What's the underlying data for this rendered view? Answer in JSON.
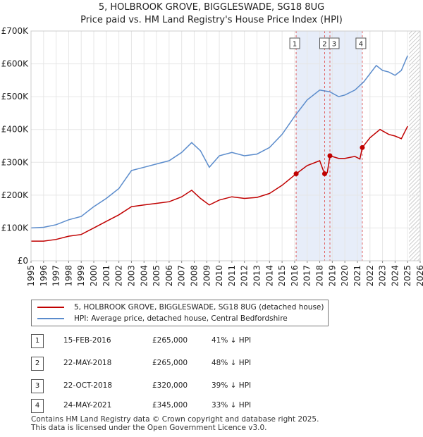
{
  "chart_data": {
    "type": "line",
    "title": "5, HOLBROOK GROVE, BIGGLESWADE, SG18 8UG",
    "subtitle": "Price paid vs. HM Land Registry's House Price Index (HPI)",
    "ylim": [
      0,
      700000
    ],
    "xlim": [
      1995,
      2026
    ],
    "yticks": [
      0,
      100000,
      200000,
      300000,
      400000,
      500000,
      600000,
      700000
    ],
    "ytick_labels": [
      "£0",
      "£100K",
      "£200K",
      "£300K",
      "£400K",
      "£500K",
      "£600K",
      "£700K"
    ],
    "xticks": [
      1995,
      1996,
      1997,
      1998,
      1999,
      2000,
      2001,
      2002,
      2003,
      2004,
      2005,
      2006,
      2007,
      2008,
      2009,
      2010,
      2011,
      2012,
      2013,
      2014,
      2015,
      2016,
      2017,
      2018,
      2019,
      2020,
      2021,
      2022,
      2023,
      2024,
      2025,
      2026
    ],
    "xtick_labels": [
      "1995",
      "1996",
      "1997",
      "1998",
      "1999",
      "2000",
      "2001",
      "2002",
      "2003",
      "2004",
      "2005",
      "2006",
      "2007",
      "2008",
      "2009",
      "2010",
      "2011",
      "2012",
      "2013",
      "2014",
      "2015",
      "2016",
      "2017",
      "2018",
      "2019",
      "2020",
      "2021",
      "2022",
      "2023",
      "2024",
      "2025",
      "2026"
    ],
    "series": [
      {
        "name": "5, HOLBROOK GROVE, BIGGLESWADE, SG18 8UG (detached house)",
        "color": "#c00000",
        "points": [
          [
            1995.0,
            60000
          ],
          [
            1996.0,
            60000
          ],
          [
            1997.0,
            65000
          ],
          [
            1998.0,
            75000
          ],
          [
            1999.0,
            80000
          ],
          [
            2000.0,
            100000
          ],
          [
            2001.0,
            120000
          ],
          [
            2002.0,
            140000
          ],
          [
            2003.0,
            165000
          ],
          [
            2004.0,
            170000
          ],
          [
            2005.0,
            175000
          ],
          [
            2006.0,
            180000
          ],
          [
            2007.0,
            195000
          ],
          [
            2007.8,
            215000
          ],
          [
            2008.5,
            190000
          ],
          [
            2009.2,
            170000
          ],
          [
            2010.0,
            185000
          ],
          [
            2011.0,
            195000
          ],
          [
            2012.0,
            190000
          ],
          [
            2013.0,
            193000
          ],
          [
            2014.0,
            205000
          ],
          [
            2015.0,
            230000
          ],
          [
            2016.12,
            265000
          ],
          [
            2017.0,
            290000
          ],
          [
            2018.0,
            305000
          ],
          [
            2018.38,
            265000
          ],
          [
            2018.6,
            268000
          ],
          [
            2018.81,
            320000
          ],
          [
            2019.5,
            312000
          ],
          [
            2020.0,
            312000
          ],
          [
            2020.8,
            318000
          ],
          [
            2021.2,
            310000
          ],
          [
            2021.39,
            345000
          ],
          [
            2022.0,
            375000
          ],
          [
            2022.8,
            400000
          ],
          [
            2023.5,
            385000
          ],
          [
            2024.0,
            380000
          ],
          [
            2024.5,
            372000
          ],
          [
            2025.0,
            410000
          ]
        ]
      },
      {
        "name": "HPI: Average price, detached house, Central Bedfordshire",
        "color": "#5b8ccc",
        "points": [
          [
            1995.0,
            100000
          ],
          [
            1996.0,
            102000
          ],
          [
            1997.0,
            110000
          ],
          [
            1998.0,
            125000
          ],
          [
            1999.0,
            135000
          ],
          [
            2000.0,
            165000
          ],
          [
            2001.0,
            190000
          ],
          [
            2002.0,
            220000
          ],
          [
            2003.0,
            275000
          ],
          [
            2004.0,
            285000
          ],
          [
            2005.0,
            295000
          ],
          [
            2006.0,
            305000
          ],
          [
            2007.0,
            330000
          ],
          [
            2007.8,
            360000
          ],
          [
            2008.5,
            335000
          ],
          [
            2009.2,
            285000
          ],
          [
            2010.0,
            320000
          ],
          [
            2011.0,
            330000
          ],
          [
            2012.0,
            320000
          ],
          [
            2013.0,
            325000
          ],
          [
            2014.0,
            345000
          ],
          [
            2015.0,
            385000
          ],
          [
            2016.0,
            440000
          ],
          [
            2017.0,
            490000
          ],
          [
            2018.0,
            520000
          ],
          [
            2018.8,
            515000
          ],
          [
            2019.5,
            500000
          ],
          [
            2020.0,
            505000
          ],
          [
            2020.8,
            520000
          ],
          [
            2021.5,
            545000
          ],
          [
            2022.5,
            595000
          ],
          [
            2023.0,
            580000
          ],
          [
            2023.5,
            575000
          ],
          [
            2024.0,
            565000
          ],
          [
            2024.5,
            580000
          ],
          [
            2025.0,
            625000
          ]
        ]
      }
    ],
    "sales": [
      {
        "label": "1",
        "x": 2016.12,
        "price": 265000
      },
      {
        "label": "2",
        "x": 2018.39,
        "price": 265000
      },
      {
        "label": "3",
        "x": 2018.81,
        "price": 320000
      },
      {
        "label": "4",
        "x": 2021.39,
        "price": 345000
      }
    ],
    "shaded_spans": [
      [
        2016.12,
        2018.81
      ],
      [
        2018.81,
        2021.39
      ]
    ],
    "projection_start": 2025.1
  },
  "legend": {
    "property_label": "5, HOLBROOK GROVE, BIGGLESWADE, SG18 8UG (detached house)",
    "hpi_label": "HPI: Average price, detached house, Central Bedfordshire"
  },
  "transactions": [
    {
      "num": "1",
      "date": "15-FEB-2016",
      "price": "£265,000",
      "hpi": "41% ↓ HPI"
    },
    {
      "num": "2",
      "date": "22-MAY-2018",
      "price": "£265,000",
      "hpi": "48% ↓ HPI"
    },
    {
      "num": "3",
      "date": "22-OCT-2018",
      "price": "£320,000",
      "hpi": "39% ↓ HPI"
    },
    {
      "num": "4",
      "date": "24-MAY-2021",
      "price": "£345,000",
      "hpi": "33% ↓ HPI"
    }
  ],
  "footer": {
    "line1": "Contains HM Land Registry data © Crown copyright and database right 2025.",
    "line2": "This data is licensed under the Open Government Licence v3.0."
  }
}
